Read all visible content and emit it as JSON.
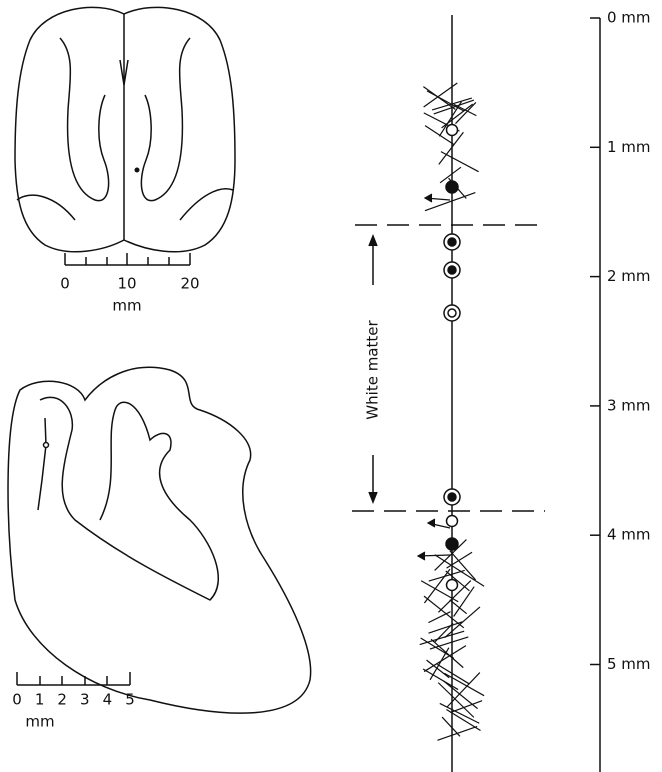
{
  "depth_scale": {
    "labels": [
      "0 mm",
      "1 mm",
      "2 mm",
      "3 mm",
      "4 mm",
      "5 mm"
    ]
  },
  "top_scale": {
    "labels": [
      "0",
      "10",
      "20"
    ],
    "unit": "mm"
  },
  "bottom_scale": {
    "labels": [
      "0",
      "1",
      "2",
      "3",
      "4",
      "5"
    ],
    "unit": "mm"
  },
  "annotation": "White matter"
}
